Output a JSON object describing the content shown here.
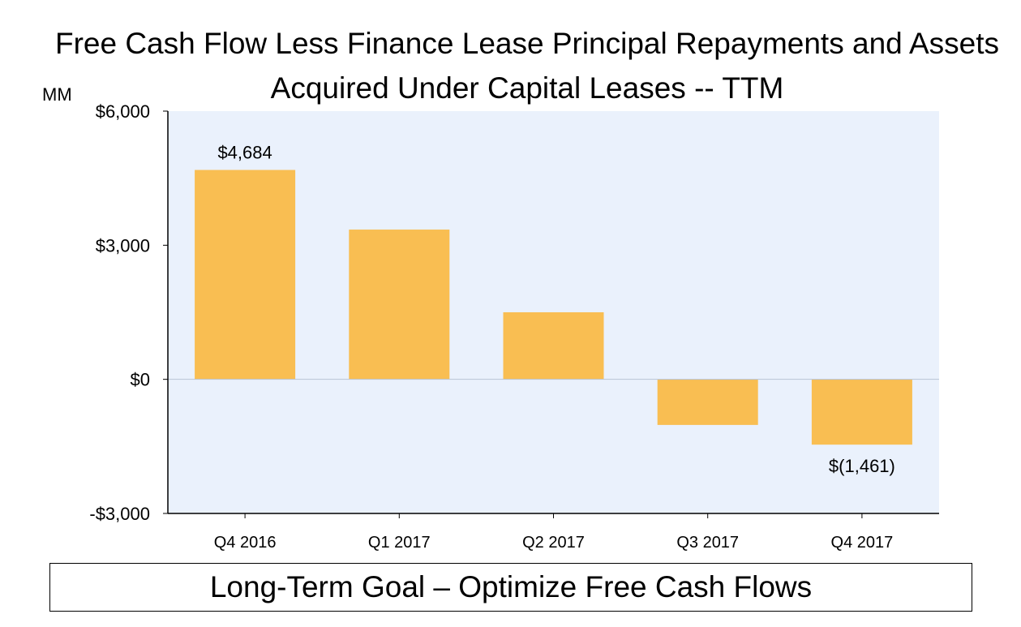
{
  "chart_data": {
    "type": "bar",
    "title": "Free Cash Flow Less Finance Lease Principal Repayments and Assets Acquired Under Capital Leases -- TTM",
    "unit_label": "MM",
    "categories": [
      "Q4 2016",
      "Q1 2017",
      "Q2 2017",
      "Q3 2017",
      "Q4 2017"
    ],
    "values": [
      4684,
      3350,
      1500,
      -1020,
      -1461
    ],
    "data_labels": [
      "$4,684",
      "",
      "",
      "",
      "$(1,461)"
    ],
    "ylim": [
      -3000,
      6000
    ],
    "y_ticks": [
      6000,
      3000,
      0,
      -3000
    ],
    "y_tick_labels": [
      "$6,000",
      "$3,000",
      "$0",
      "-$3,000"
    ],
    "xlabel": "",
    "ylabel": "",
    "grid": false,
    "colors": {
      "bar": "#f9be52",
      "plot_background": "#eaf1fc",
      "zero_line": "#b9c4d6",
      "axis": "#000000"
    }
  },
  "footer": {
    "goal_text": "Long-Term Goal – Optimize Free Cash Flows"
  }
}
